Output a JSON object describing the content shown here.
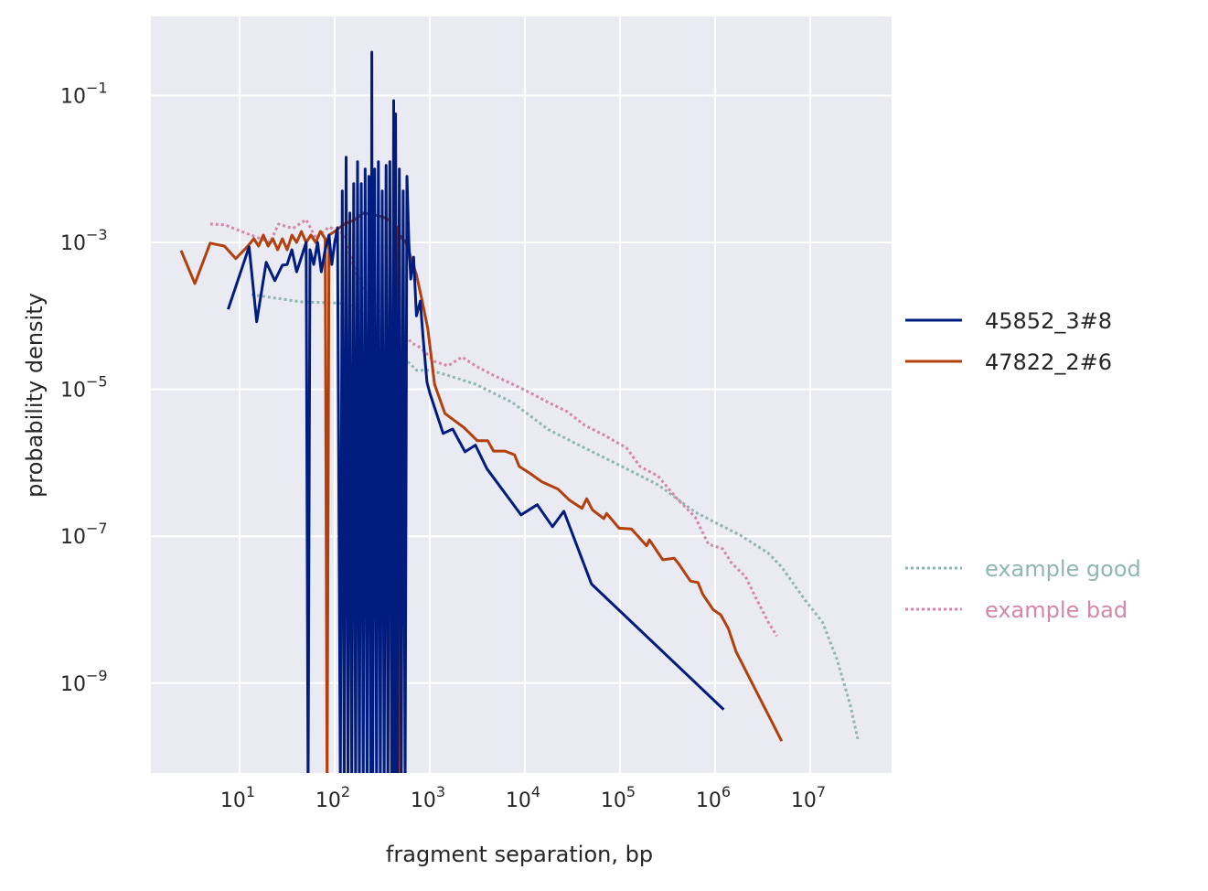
{
  "chart_data": {
    "type": "line",
    "xlabel": "fragment separation, bp",
    "ylabel": "probability density",
    "xscale": "log",
    "yscale": "log",
    "xlim_log10": [
      0.07,
      7.86
    ],
    "ylim_log10": [
      -10.23,
      0.07
    ],
    "grid": true,
    "legend_placement": "right-outside",
    "xticks": [
      {
        "base": "10",
        "exp": "1",
        "v": 1
      },
      {
        "base": "10",
        "exp": "2",
        "v": 2
      },
      {
        "base": "10",
        "exp": "3",
        "v": 3
      },
      {
        "base": "10",
        "exp": "4",
        "v": 4
      },
      {
        "base": "10",
        "exp": "5",
        "v": 5
      },
      {
        "base": "10",
        "exp": "6",
        "v": 6
      },
      {
        "base": "10",
        "exp": "7",
        "v": 7
      }
    ],
    "yticks": [
      {
        "base": "10",
        "exp": "−1",
        "v": -1
      },
      {
        "base": "10",
        "exp": "−3",
        "v": -3
      },
      {
        "base": "10",
        "exp": "−5",
        "v": -5
      },
      {
        "base": "10",
        "exp": "−7",
        "v": -7
      },
      {
        "base": "10",
        "exp": "−9",
        "v": -9
      }
    ],
    "note": "points are [log10(x), log10(y)]; values below the axis represent zero density",
    "series": [
      {
        "name": "45852_3#8",
        "color": "#001c7f",
        "style": "solid",
        "legend_group": 1,
        "points": [
          [
            0.88,
            -3.91
          ],
          [
            1.1,
            -3.06
          ],
          [
            1.18,
            -4.08
          ],
          [
            1.28,
            -3.27
          ],
          [
            1.37,
            -3.52
          ],
          [
            1.45,
            -3.31
          ],
          [
            1.5,
            -3.3
          ],
          [
            1.55,
            -3.1
          ],
          [
            1.6,
            -3.4
          ],
          [
            1.65,
            -3.2
          ],
          [
            1.7,
            -3.0
          ],
          [
            1.72,
            -10.5
          ],
          [
            1.74,
            -3.1
          ],
          [
            1.78,
            -3.3
          ],
          [
            1.82,
            -3.0
          ],
          [
            1.86,
            -3.4
          ],
          [
            1.9,
            -3.1
          ],
          [
            1.94,
            -2.9
          ],
          [
            1.97,
            -3.3
          ],
          [
            2.0,
            -3.0
          ],
          [
            2.03,
            -2.8
          ],
          [
            2.06,
            -10.5
          ],
          [
            2.08,
            -2.3
          ],
          [
            2.1,
            -10.5
          ],
          [
            2.12,
            -1.84
          ],
          [
            2.14,
            -10.5
          ],
          [
            2.16,
            -2.6
          ],
          [
            2.18,
            -10.5
          ],
          [
            2.2,
            -2.2
          ],
          [
            2.22,
            -10.5
          ],
          [
            2.24,
            -1.9
          ],
          [
            2.26,
            -10.5
          ],
          [
            2.28,
            -2.2
          ],
          [
            2.3,
            -10.5
          ],
          [
            2.32,
            -2.0
          ],
          [
            2.34,
            -10.5
          ],
          [
            2.36,
            -2.1
          ],
          [
            2.38,
            -10.5
          ],
          [
            2.39,
            -0.41
          ],
          [
            2.4,
            -10.5
          ],
          [
            2.42,
            -2.0
          ],
          [
            2.44,
            -10.5
          ],
          [
            2.46,
            -1.9
          ],
          [
            2.48,
            -10.5
          ],
          [
            2.5,
            -2.3
          ],
          [
            2.52,
            -10.5
          ],
          [
            2.54,
            -1.95
          ],
          [
            2.56,
            -10.5
          ],
          [
            2.58,
            -1.9
          ],
          [
            2.6,
            -10.5
          ],
          [
            2.62,
            -1.07
          ],
          [
            2.63,
            -10.5
          ],
          [
            2.64,
            -1.25
          ],
          [
            2.66,
            -10.5
          ],
          [
            2.68,
            -2.0
          ],
          [
            2.7,
            -10.5
          ],
          [
            2.72,
            -2.3
          ],
          [
            2.74,
            -10.5
          ],
          [
            2.76,
            -2.1
          ],
          [
            2.78,
            -3.0
          ],
          [
            2.8,
            -3.5
          ],
          [
            2.83,
            -3.2
          ],
          [
            2.86,
            -4.0
          ],
          [
            2.9,
            -3.8
          ],
          [
            2.93,
            -4.3
          ],
          [
            2.97,
            -4.9
          ],
          [
            3.0,
            -5.05
          ],
          [
            3.14,
            -5.6
          ],
          [
            3.24,
            -5.54
          ],
          [
            3.37,
            -5.85
          ],
          [
            3.48,
            -5.76
          ],
          [
            3.6,
            -6.08
          ],
          [
            3.96,
            -6.71
          ],
          [
            4.13,
            -6.57
          ],
          [
            4.29,
            -6.87
          ],
          [
            4.41,
            -6.66
          ],
          [
            4.7,
            -7.65
          ],
          [
            6.09,
            -9.36
          ]
        ]
      },
      {
        "name": "47822_2#6",
        "color": "#b1400d",
        "style": "solid",
        "legend_group": 1,
        "points": [
          [
            0.385,
            -3.11
          ],
          [
            0.53,
            -3.56
          ],
          [
            0.69,
            -3.01
          ],
          [
            0.84,
            -3.05
          ],
          [
            0.96,
            -3.22
          ],
          [
            1.08,
            -3.06
          ],
          [
            1.15,
            -2.95
          ],
          [
            1.2,
            -3.05
          ],
          [
            1.25,
            -2.9
          ],
          [
            1.3,
            -3.05
          ],
          [
            1.35,
            -2.95
          ],
          [
            1.4,
            -3.1
          ],
          [
            1.45,
            -2.95
          ],
          [
            1.5,
            -3.1
          ],
          [
            1.55,
            -2.9
          ],
          [
            1.6,
            -3.0
          ],
          [
            1.65,
            -2.85
          ],
          [
            1.7,
            -3.0
          ],
          [
            1.75,
            -2.9
          ],
          [
            1.8,
            -3.0
          ],
          [
            1.85,
            -2.85
          ],
          [
            1.9,
            -2.95
          ],
          [
            1.92,
            -10.5
          ],
          [
            1.94,
            -2.9
          ],
          [
            2.0,
            -2.85
          ],
          [
            2.1,
            -2.75
          ],
          [
            2.2,
            -2.7
          ],
          [
            2.3,
            -2.6
          ],
          [
            2.4,
            -2.62
          ],
          [
            2.5,
            -2.65
          ],
          [
            2.58,
            -2.7
          ],
          [
            2.6,
            -10.5
          ],
          [
            2.62,
            -2.75
          ],
          [
            2.66,
            -2.8
          ],
          [
            2.67,
            -10.5
          ],
          [
            2.68,
            -2.9
          ],
          [
            2.75,
            -3.0
          ],
          [
            2.8,
            -3.2
          ],
          [
            2.86,
            -3.44
          ],
          [
            2.92,
            -3.8
          ],
          [
            2.98,
            -4.18
          ],
          [
            3.05,
            -4.93
          ],
          [
            3.16,
            -5.33
          ],
          [
            3.36,
            -5.52
          ],
          [
            3.5,
            -5.7
          ],
          [
            3.61,
            -5.7
          ],
          [
            3.67,
            -5.84
          ],
          [
            3.79,
            -5.84
          ],
          [
            3.89,
            -5.89
          ],
          [
            3.94,
            -6.05
          ],
          [
            4.06,
            -6.15
          ],
          [
            4.18,
            -6.26
          ],
          [
            4.35,
            -6.36
          ],
          [
            4.47,
            -6.51
          ],
          [
            4.6,
            -6.62
          ],
          [
            4.65,
            -6.49
          ],
          [
            4.71,
            -6.64
          ],
          [
            4.83,
            -6.76
          ],
          [
            4.86,
            -6.69
          ],
          [
            4.99,
            -6.89
          ],
          [
            5.12,
            -6.9
          ],
          [
            5.28,
            -7.13
          ],
          [
            5.31,
            -7.05
          ],
          [
            5.45,
            -7.32
          ],
          [
            5.57,
            -7.3
          ],
          [
            5.62,
            -7.38
          ],
          [
            5.74,
            -7.61
          ],
          [
            5.82,
            -7.63
          ],
          [
            5.87,
            -7.79
          ],
          [
            5.98,
            -8.0
          ],
          [
            6.06,
            -8.07
          ],
          [
            6.14,
            -8.26
          ],
          [
            6.22,
            -8.57
          ],
          [
            6.7,
            -9.79
          ]
        ]
      },
      {
        "name": "example good",
        "color": "#8fb7b0",
        "style": "dotted",
        "legend_group": 2,
        "points": [
          [
            1.125,
            -3.71
          ],
          [
            1.65,
            -3.81
          ],
          [
            2.13,
            -3.83
          ],
          [
            2.37,
            -4.03
          ],
          [
            2.62,
            -4.43
          ],
          [
            2.86,
            -4.74
          ],
          [
            3.0,
            -4.74
          ],
          [
            3.19,
            -4.81
          ],
          [
            3.48,
            -4.93
          ],
          [
            3.87,
            -5.18
          ],
          [
            4.25,
            -5.55
          ],
          [
            4.63,
            -5.8
          ],
          [
            5.02,
            -6.05
          ],
          [
            5.4,
            -6.3
          ],
          [
            5.79,
            -6.67
          ],
          [
            5.98,
            -6.8
          ],
          [
            6.27,
            -6.99
          ],
          [
            6.56,
            -7.23
          ],
          [
            6.7,
            -7.42
          ],
          [
            6.94,
            -7.86
          ],
          [
            7.13,
            -8.17
          ],
          [
            7.28,
            -8.67
          ],
          [
            7.42,
            -9.29
          ],
          [
            7.5,
            -9.76
          ]
        ]
      },
      {
        "name": "example bad",
        "color": "#d487a8",
        "style": "dotted",
        "legend_group": 2,
        "points": [
          [
            0.69,
            -2.75
          ],
          [
            0.84,
            -2.76
          ],
          [
            1.08,
            -2.88
          ],
          [
            1.32,
            -3.0
          ],
          [
            1.41,
            -2.75
          ],
          [
            1.56,
            -2.81
          ],
          [
            1.7,
            -2.69
          ],
          [
            1.8,
            -2.94
          ],
          [
            1.94,
            -2.79
          ],
          [
            2.09,
            -2.88
          ],
          [
            2.23,
            -3.44
          ],
          [
            2.38,
            -3.81
          ],
          [
            2.52,
            -4.0
          ],
          [
            2.66,
            -4.12
          ],
          [
            2.81,
            -4.37
          ],
          [
            2.9,
            -4.43
          ],
          [
            3.05,
            -4.62
          ],
          [
            3.19,
            -4.68
          ],
          [
            3.34,
            -4.56
          ],
          [
            3.48,
            -4.68
          ],
          [
            3.67,
            -4.81
          ],
          [
            3.87,
            -4.93
          ],
          [
            4.06,
            -5.05
          ],
          [
            4.25,
            -5.18
          ],
          [
            4.44,
            -5.3
          ],
          [
            4.63,
            -5.49
          ],
          [
            4.83,
            -5.62
          ],
          [
            5.07,
            -5.8
          ],
          [
            5.21,
            -6.05
          ],
          [
            5.4,
            -6.18
          ],
          [
            5.6,
            -6.49
          ],
          [
            5.79,
            -6.74
          ],
          [
            5.93,
            -7.11
          ],
          [
            6.08,
            -7.17
          ],
          [
            6.17,
            -7.36
          ],
          [
            6.32,
            -7.55
          ],
          [
            6.41,
            -7.79
          ],
          [
            6.56,
            -8.17
          ],
          [
            6.65,
            -8.36
          ]
        ]
      }
    ]
  }
}
